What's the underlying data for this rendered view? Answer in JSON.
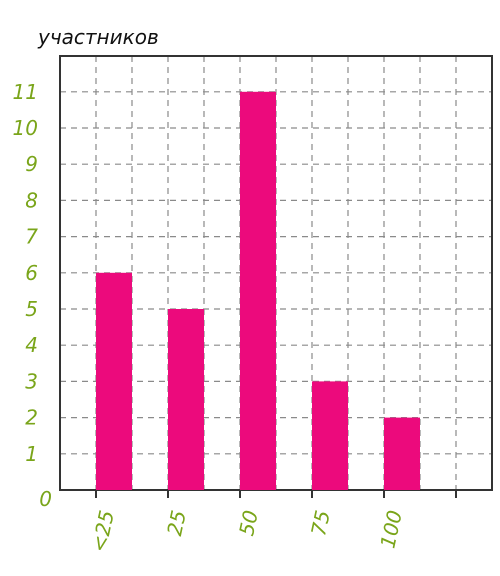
{
  "chart_data": {
    "type": "bar",
    "ylabel": "участников",
    "categories": [
      "<25",
      "25",
      "50",
      "75",
      "100"
    ],
    "values": [
      6,
      5,
      11,
      3,
      2
    ],
    "ylim": [
      0,
      11
    ],
    "yticks": [
      "0",
      "1",
      "2",
      "3",
      "4",
      "5",
      "6",
      "7",
      "8",
      "9",
      "10",
      "11"
    ],
    "grid": true,
    "colors": {
      "bar": "#ec0a7c",
      "tick_label": "#7aa51a",
      "axis": "#333333",
      "grid": "#8a8a8a"
    }
  }
}
